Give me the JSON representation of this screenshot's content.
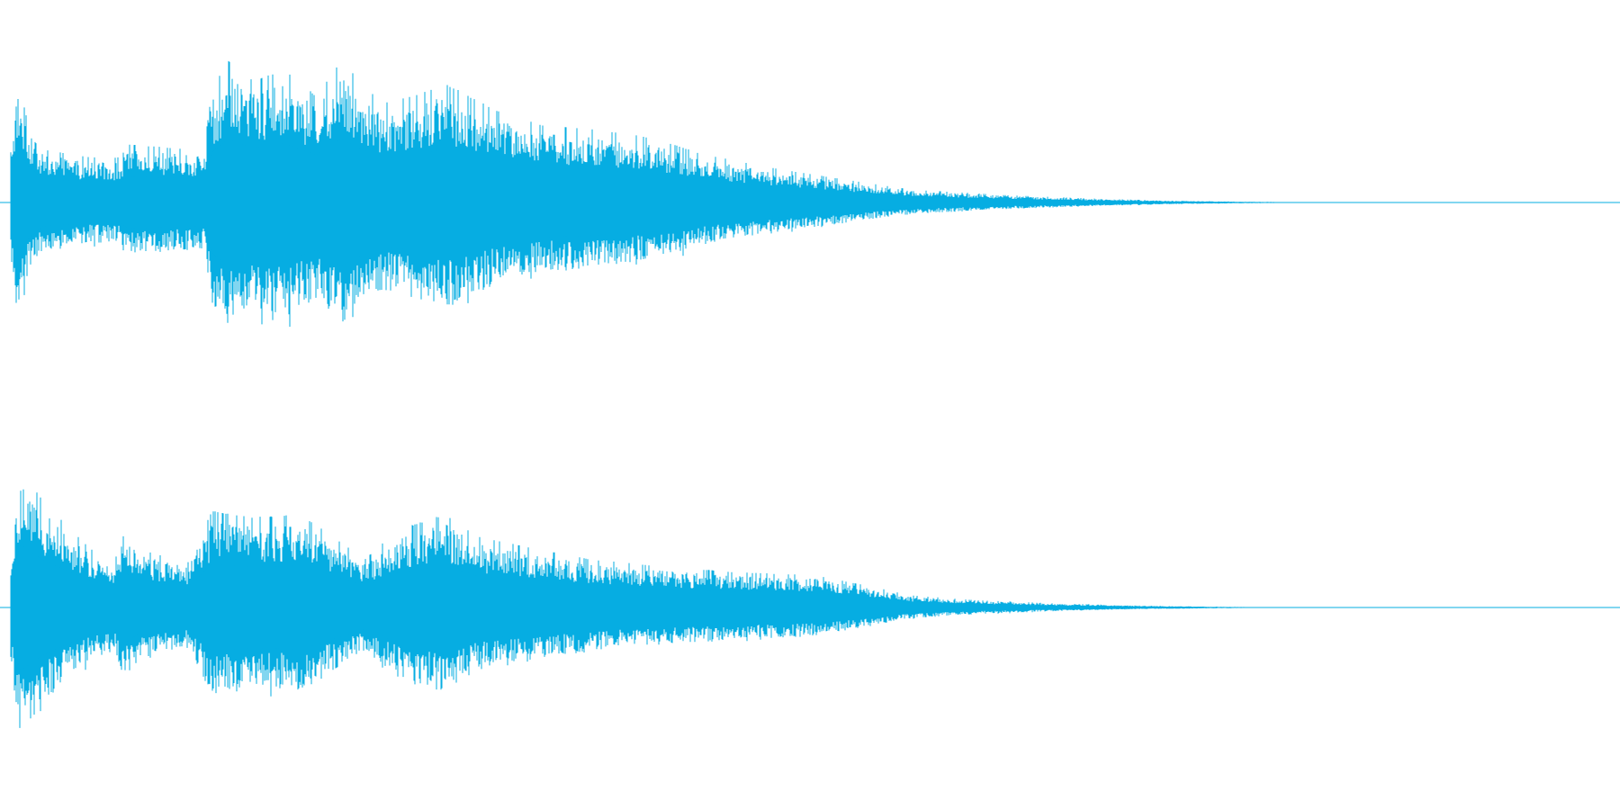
{
  "waveform": {
    "color": "#06ade2",
    "background": "#ffffff",
    "channels": [
      {
        "name": "left",
        "envelope": [
          [
            0.0,
            0.4
          ],
          [
            0.004,
            0.78
          ],
          [
            0.01,
            0.52
          ],
          [
            0.02,
            0.33
          ],
          [
            0.05,
            0.28
          ],
          [
            0.068,
            0.28
          ],
          [
            0.073,
            0.36
          ],
          [
            0.1,
            0.34
          ],
          [
            0.12,
            0.33
          ],
          [
            0.125,
            0.7
          ],
          [
            0.135,
            0.88
          ],
          [
            0.15,
            0.76
          ],
          [
            0.17,
            0.82
          ],
          [
            0.19,
            0.66
          ],
          [
            0.205,
            0.88
          ],
          [
            0.23,
            0.62
          ],
          [
            0.25,
            0.66
          ],
          [
            0.27,
            0.74
          ],
          [
            0.3,
            0.58
          ],
          [
            0.33,
            0.48
          ],
          [
            0.36,
            0.46
          ],
          [
            0.4,
            0.4
          ],
          [
            0.43,
            0.3
          ],
          [
            0.47,
            0.22
          ],
          [
            0.52,
            0.14
          ],
          [
            0.56,
            0.08
          ],
          [
            0.62,
            0.045
          ],
          [
            0.68,
            0.022
          ],
          [
            0.73,
            0.01
          ],
          [
            0.78,
            0.004
          ],
          [
            0.82,
            0.0
          ]
        ]
      },
      {
        "name": "right",
        "envelope": [
          [
            0.0,
            0.4
          ],
          [
            0.006,
            0.88
          ],
          [
            0.02,
            0.66
          ],
          [
            0.05,
            0.36
          ],
          [
            0.065,
            0.3
          ],
          [
            0.07,
            0.5
          ],
          [
            0.08,
            0.36
          ],
          [
            0.11,
            0.28
          ],
          [
            0.125,
            0.6
          ],
          [
            0.15,
            0.56
          ],
          [
            0.18,
            0.58
          ],
          [
            0.2,
            0.44
          ],
          [
            0.22,
            0.3
          ],
          [
            0.24,
            0.48
          ],
          [
            0.27,
            0.58
          ],
          [
            0.29,
            0.44
          ],
          [
            0.32,
            0.38
          ],
          [
            0.36,
            0.3
          ],
          [
            0.4,
            0.26
          ],
          [
            0.45,
            0.22
          ],
          [
            0.5,
            0.2
          ],
          [
            0.53,
            0.14
          ],
          [
            0.56,
            0.075
          ],
          [
            0.6,
            0.045
          ],
          [
            0.65,
            0.025
          ],
          [
            0.7,
            0.012
          ],
          [
            0.76,
            0.004
          ],
          [
            0.8,
            0.0
          ]
        ]
      }
    ]
  }
}
